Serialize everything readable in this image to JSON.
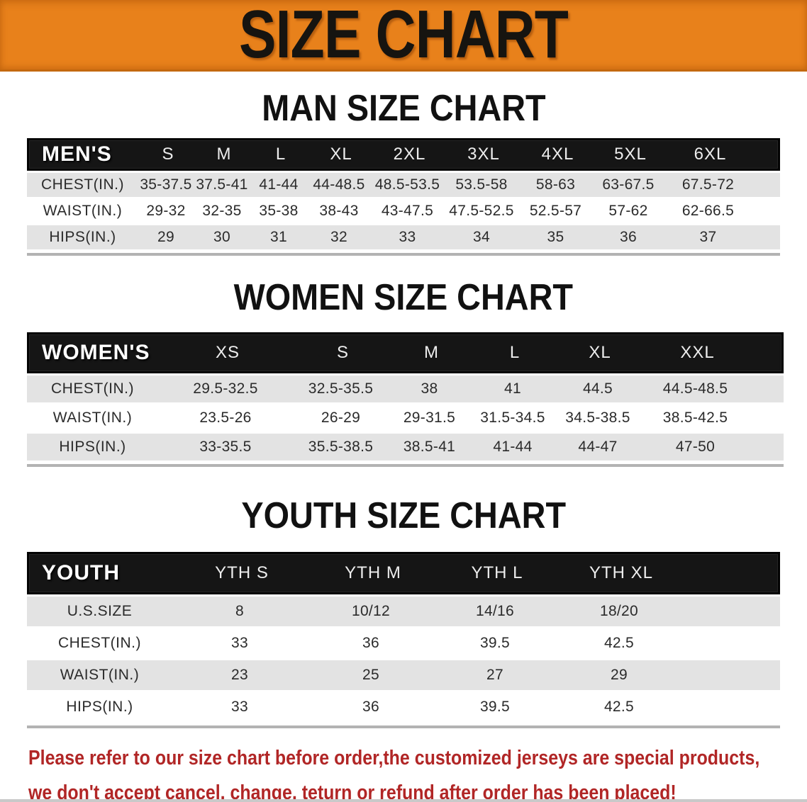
{
  "banner": {
    "title": "SIZE CHART"
  },
  "men": {
    "section_title": "MAN SIZE CHART",
    "header_label": "MEN'S",
    "columns": [
      "S",
      "M",
      "L",
      "XL",
      "2XL",
      "3XL",
      "4XL",
      "5XL",
      "6XL"
    ],
    "rows": [
      {
        "label": "CHEST(IN.)",
        "values": [
          "35-37.5",
          "37.5-41",
          "41-44",
          "44-48.5",
          "48.5-53.5",
          "53.5-58",
          "58-63",
          "63-67.5",
          "67.5-72"
        ]
      },
      {
        "label": "WAIST(IN.)",
        "values": [
          "29-32",
          "32-35",
          "35-38",
          "38-43",
          "43-47.5",
          "47.5-52.5",
          "52.5-57",
          "57-62",
          "62-66.5"
        ]
      },
      {
        "label": "HIPS(IN.)",
        "values": [
          "29",
          "30",
          "31",
          "32",
          "33",
          "34",
          "35",
          "36",
          "37"
        ]
      }
    ]
  },
  "women": {
    "section_title": "WOMEN SIZE CHART",
    "header_label": "WOMEN'S",
    "columns": [
      "XS",
      "S",
      "M",
      "L",
      "XL",
      "XXL"
    ],
    "rows": [
      {
        "label": "CHEST(IN.)",
        "values": [
          "29.5-32.5",
          "32.5-35.5",
          "38",
          "41",
          "44.5",
          "44.5-48.5"
        ]
      },
      {
        "label": "WAIST(IN.)",
        "values": [
          "23.5-26",
          "26-29",
          "29-31.5",
          "31.5-34.5",
          "34.5-38.5",
          "38.5-42.5"
        ]
      },
      {
        "label": "HIPS(IN.)",
        "values": [
          "33-35.5",
          "35.5-38.5",
          "38.5-41",
          "41-44",
          "44-47",
          "47-50"
        ]
      }
    ]
  },
  "youth": {
    "section_title": "YOUTH SIZE CHART",
    "header_label": "YOUTH",
    "columns": [
      "YTH S",
      "YTH M",
      "YTH L",
      "YTH XL"
    ],
    "rows": [
      {
        "label": "U.S.SIZE",
        "values": [
          "8",
          "10/12",
          "14/16",
          "18/20"
        ]
      },
      {
        "label": "CHEST(IN.)",
        "values": [
          "33",
          "36",
          "39.5",
          "42.5"
        ]
      },
      {
        "label": "WAIST(IN.)",
        "values": [
          "23",
          "25",
          "27",
          "29"
        ]
      },
      {
        "label": "HIPS(IN.)",
        "values": [
          "33",
          "36",
          "39.5",
          "42.5"
        ]
      }
    ]
  },
  "footer": {
    "line1": "Please refer to our size chart before order,the customized jerseys are special products,",
    "line2": "we don't accept cancel, change, teturn or refund after order has been placed!"
  },
  "colors": {
    "banner_bg": "#E8811B",
    "header_bar": "#151515",
    "row_gray": "#E3E3E3",
    "footer_red": "#B12626"
  }
}
